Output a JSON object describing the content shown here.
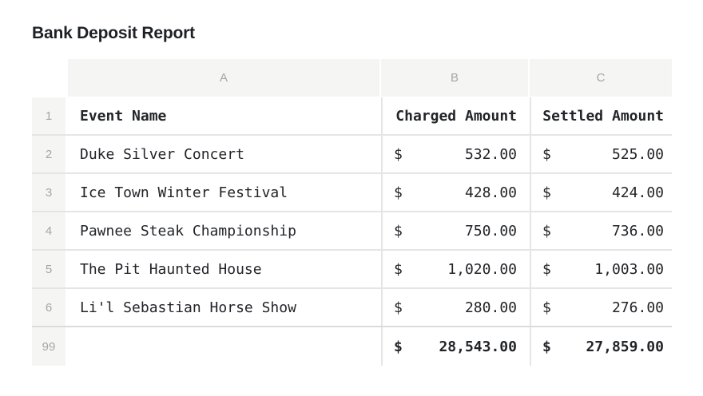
{
  "page": {
    "title": "Bank Deposit Report"
  },
  "colors": {
    "title_color": "#1d2025",
    "text": "#222428",
    "muted": "#a5a6a8",
    "header_bg": "#f5f5f4",
    "border": "#e4e5e7",
    "border_strong": "#d9dcdf"
  },
  "sheet": {
    "column_letters": [
      "A",
      "B",
      "C"
    ],
    "currency_symbol": "$",
    "header_row": {
      "num": "1",
      "event": "Event Name",
      "charged": "Charged Amount",
      "settled": "Settled Amount"
    },
    "rows": [
      {
        "num": "2",
        "event": "Duke Silver Concert",
        "charged": "532.00",
        "settled": "525.00"
      },
      {
        "num": "3",
        "event": "Ice Town Winter Festival",
        "charged": "428.00",
        "settled": "424.00"
      },
      {
        "num": "4",
        "event": "Pawnee Steak Championship",
        "charged": "750.00",
        "settled": "736.00"
      },
      {
        "num": "5",
        "event": "The Pit Haunted House",
        "charged": "1,020.00",
        "settled": "1,003.00"
      },
      {
        "num": "6",
        "event": "Li'l Sebastian Horse Show",
        "charged": "280.00",
        "settled": "276.00"
      }
    ],
    "total_row": {
      "num": "99",
      "event": "",
      "charged": "28,543.00",
      "settled": "27,859.00"
    }
  },
  "chart_data": {
    "type": "table",
    "title": "Bank Deposit Report",
    "columns": [
      "Event Name",
      "Charged Amount",
      "Settled Amount"
    ],
    "rows": [
      [
        "Duke Silver Concert",
        532.0,
        525.0
      ],
      [
        "Ice Town Winter Festival",
        428.0,
        424.0
      ],
      [
        "Pawnee Steak Championship",
        750.0,
        736.0
      ],
      [
        "The Pit Haunted House",
        1020.0,
        1003.0
      ],
      [
        "Li'l Sebastian Horse Show",
        280.0,
        276.0
      ]
    ],
    "totals": {
      "charged": 28543.0,
      "settled": 27859.0
    }
  }
}
